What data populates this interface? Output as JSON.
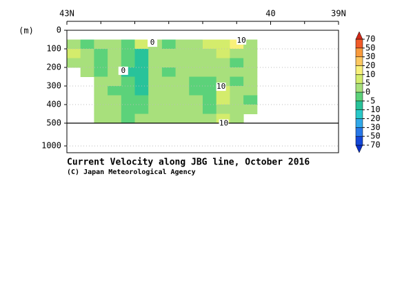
{
  "chart_data": {
    "type": "contour",
    "title": "Current Velocity along JBG line, October 2016",
    "subtitle": "(C) Japan Meteorological Agency",
    "y_label": "(m)",
    "xlim": [
      43,
      39
    ],
    "xticks": [
      {
        "value": 43,
        "label": "43N"
      },
      40,
      {
        "value": 39,
        "label": "39N"
      }
    ],
    "xminorticks": [
      42.5,
      42,
      41.5,
      41,
      40.5,
      39.5
    ],
    "ylim": [
      0,
      1150
    ],
    "y_break": 500,
    "yticks": [
      0,
      100,
      200,
      300,
      400,
      500,
      1000
    ],
    "grid": true,
    "x": [
      42.9,
      42.7,
      42.5,
      42.3,
      42.1,
      41.9,
      41.7,
      41.5,
      41.3,
      41.1,
      40.9,
      40.7,
      40.5,
      40.3
    ],
    "depth": [
      75,
      125,
      175,
      225,
      275,
      325,
      375,
      425,
      475
    ],
    "z": [
      [
        3,
        -3,
        3,
        3,
        -3,
        7,
        3,
        -3,
        3,
        3,
        7,
        7,
        12,
        3
      ],
      [
        7,
        3,
        -3,
        3,
        -3,
        -7,
        3,
        3,
        3,
        3,
        3,
        7,
        3,
        3
      ],
      [
        3,
        3,
        -3,
        3,
        -3,
        -7,
        3,
        3,
        3,
        3,
        3,
        3,
        -3,
        3
      ],
      [
        null,
        3,
        -3,
        3,
        -7,
        -7,
        3,
        -3,
        3,
        3,
        3,
        3,
        3,
        3
      ],
      [
        null,
        null,
        3,
        3,
        -3,
        -7,
        3,
        3,
        3,
        -3,
        -3,
        3,
        -3,
        3
      ],
      [
        null,
        null,
        3,
        -3,
        -3,
        -7,
        3,
        3,
        3,
        -3,
        -3,
        7,
        3,
        3
      ],
      [
        null,
        null,
        3,
        3,
        -3,
        -3,
        3,
        3,
        3,
        3,
        -3,
        7,
        3,
        -3
      ],
      [
        null,
        null,
        3,
        3,
        -3,
        -3,
        3,
        3,
        3,
        3,
        -3,
        3,
        3,
        3
      ],
      [
        null,
        null,
        3,
        3,
        -3,
        3,
        3,
        3,
        3,
        3,
        3,
        7,
        3,
        null
      ]
    ],
    "levels": [
      -70,
      -50,
      -30,
      -20,
      -10,
      -5,
      0,
      5,
      10,
      20,
      30,
      50,
      70
    ],
    "colors": [
      "#0a30c8",
      "#1448d8",
      "#2878e8",
      "#30a8e8",
      "#28c8c8",
      "#28c39a",
      "#5cd27a",
      "#a8e07c",
      "#d4ec6c",
      "#f8f07a",
      "#fcc860",
      "#f89a3c",
      "#f05a28",
      "#d02818"
    ],
    "contour_labels": [
      {
        "value": 10,
        "lat": 40.43,
        "depth": 55
      },
      {
        "value": 0,
        "lat": 41.74,
        "depth": 67
      },
      {
        "value": 0,
        "lat": 42.17,
        "depth": 218
      },
      {
        "value": 10,
        "lat": 40.73,
        "depth": 304
      },
      {
        "value": 10,
        "lat": 40.69,
        "depth": 507
      }
    ]
  }
}
